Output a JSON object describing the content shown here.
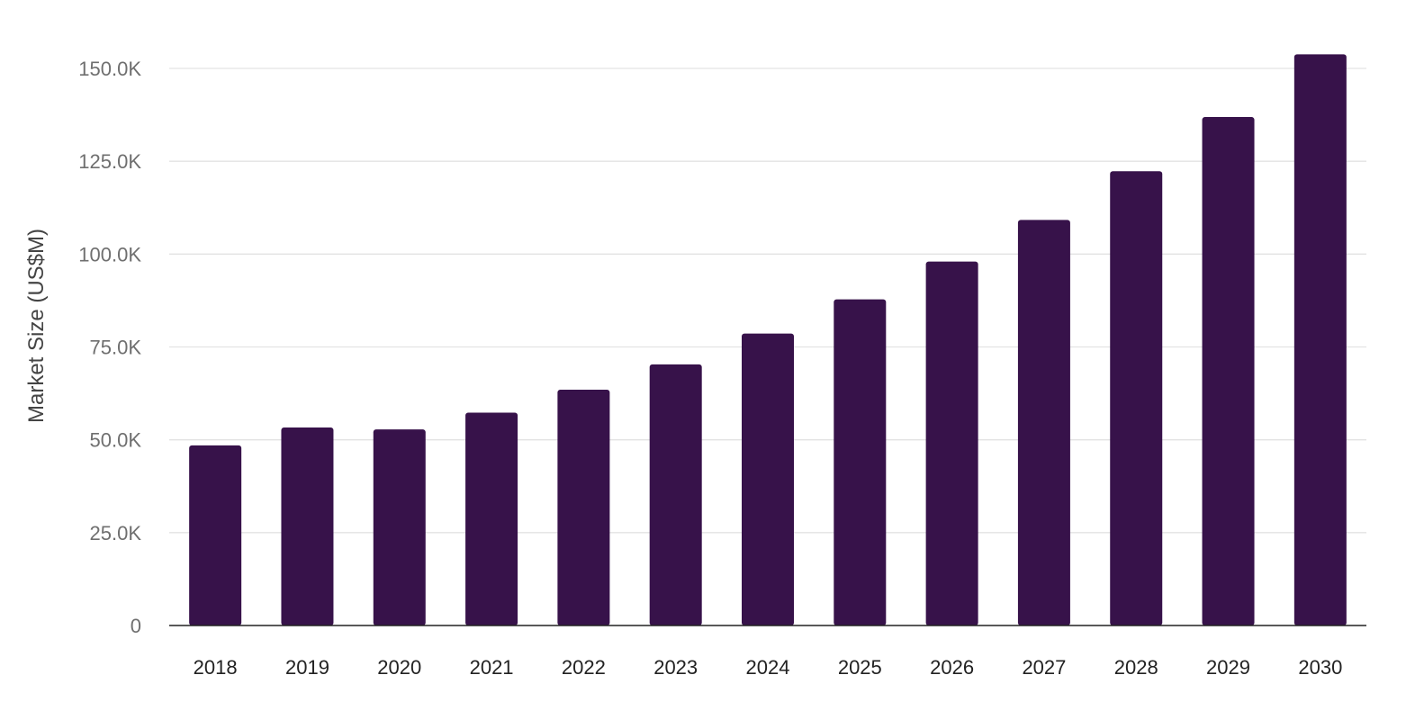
{
  "chart_data": {
    "type": "bar",
    "title": "",
    "xlabel": "",
    "ylabel": "Market Size (US$M)",
    "categories": [
      "2018",
      "2019",
      "2020",
      "2021",
      "2022",
      "2023",
      "2024",
      "2025",
      "2026",
      "2027",
      "2028",
      "2029",
      "2030"
    ],
    "values": [
      48500,
      53300,
      52800,
      57300,
      63500,
      70300,
      78600,
      87800,
      98000,
      109200,
      122300,
      136900,
      153800
    ],
    "ylim": [
      0,
      150000
    ],
    "yticks": [
      0,
      25000,
      50000,
      75000,
      100000,
      125000,
      150000
    ],
    "ytick_labels": [
      "0",
      "25.0K",
      "50.0K",
      "75.0K",
      "100.0K",
      "125.0K",
      "150.0K"
    ],
    "grid": true,
    "legend": "none",
    "colors": {
      "bar": "#37124a",
      "grid": "#e3e3e3",
      "axis": "#222222"
    }
  }
}
